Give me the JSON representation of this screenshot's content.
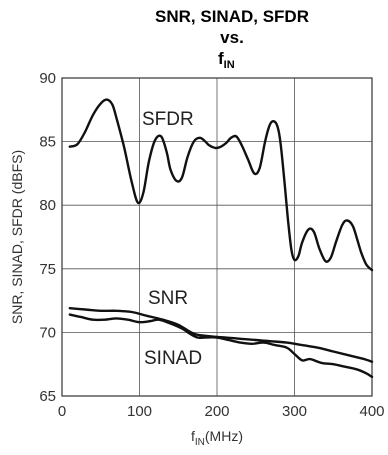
{
  "chart_data": {
    "type": "line",
    "title_lines": [
      "SNR, SINAD, SFDR",
      "vs."
    ],
    "title_f": "f",
    "title_sub": "IN",
    "xlabel_f": "f",
    "xlabel_sub": "IN",
    "xlabel_rest": "(MHz)",
    "ylabel": "SNR, SINAD, SFDR (dBFS)",
    "xlim": [
      0,
      400
    ],
    "ylim": [
      65,
      90
    ],
    "xticks": [
      "0",
      "100",
      "200",
      "300",
      "400"
    ],
    "yticks": [
      "65",
      "70",
      "75",
      "80",
      "85",
      "90"
    ],
    "grid": true,
    "series": [
      {
        "name": "SFDR",
        "x": [
          10,
          20,
          30,
          40,
          50,
          58,
          65,
          70,
          80,
          90,
          98,
          105,
          112,
          120,
          128,
          135,
          140,
          148,
          155,
          162,
          170,
          178,
          185,
          190,
          198,
          205,
          212,
          218,
          225,
          232,
          240,
          248,
          255,
          262,
          268,
          273,
          278,
          282,
          287,
          292,
          296,
          300,
          305,
          310,
          318,
          325,
          332,
          340,
          347,
          354,
          362,
          368,
          375,
          380,
          386,
          392,
          396,
          400
        ],
        "values": [
          84.6,
          84.8,
          85.8,
          87.1,
          88.0,
          88.3,
          87.9,
          86.9,
          84.6,
          81.8,
          80.2,
          81.0,
          83.4,
          85.1,
          85.4,
          84.2,
          82.8,
          81.9,
          82.2,
          83.8,
          85.0,
          85.3,
          85.0,
          84.7,
          84.5,
          84.6,
          84.9,
          85.3,
          85.4,
          84.7,
          83.6,
          82.5,
          82.9,
          85.0,
          86.3,
          86.6,
          86.2,
          84.9,
          81.9,
          78.6,
          76.5,
          75.7,
          76.0,
          77.1,
          78.1,
          77.9,
          76.6,
          75.6,
          75.9,
          77.2,
          78.5,
          78.8,
          78.4,
          77.5,
          76.3,
          75.4,
          75.1,
          74.9
        ]
      },
      {
        "name": "SNR",
        "x": [
          10,
          30,
          50,
          70,
          90,
          110,
          130,
          150,
          170,
          190,
          210,
          230,
          250,
          270,
          290,
          310,
          330,
          350,
          370,
          390,
          400
        ],
        "values": [
          71.9,
          71.8,
          71.7,
          71.7,
          71.6,
          71.3,
          71.0,
          70.6,
          69.9,
          69.7,
          69.6,
          69.5,
          69.4,
          69.3,
          69.2,
          69.0,
          68.8,
          68.5,
          68.2,
          67.9,
          67.7
        ]
      },
      {
        "name": "SINAD",
        "x": [
          10,
          25,
          40,
          55,
          70,
          85,
          100,
          115,
          125,
          140,
          155,
          165,
          175,
          185,
          200,
          215,
          230,
          245,
          260,
          275,
          290,
          300,
          310,
          320,
          335,
          350,
          365,
          380,
          392,
          400
        ],
        "values": [
          71.4,
          71.2,
          71.0,
          71.0,
          71.1,
          71.0,
          70.8,
          70.9,
          71.0,
          70.7,
          70.3,
          69.9,
          69.6,
          69.6,
          69.6,
          69.4,
          69.2,
          69.1,
          69.2,
          69.0,
          68.8,
          68.3,
          67.8,
          67.9,
          67.6,
          67.5,
          67.3,
          67.1,
          66.8,
          66.5
        ]
      }
    ]
  }
}
